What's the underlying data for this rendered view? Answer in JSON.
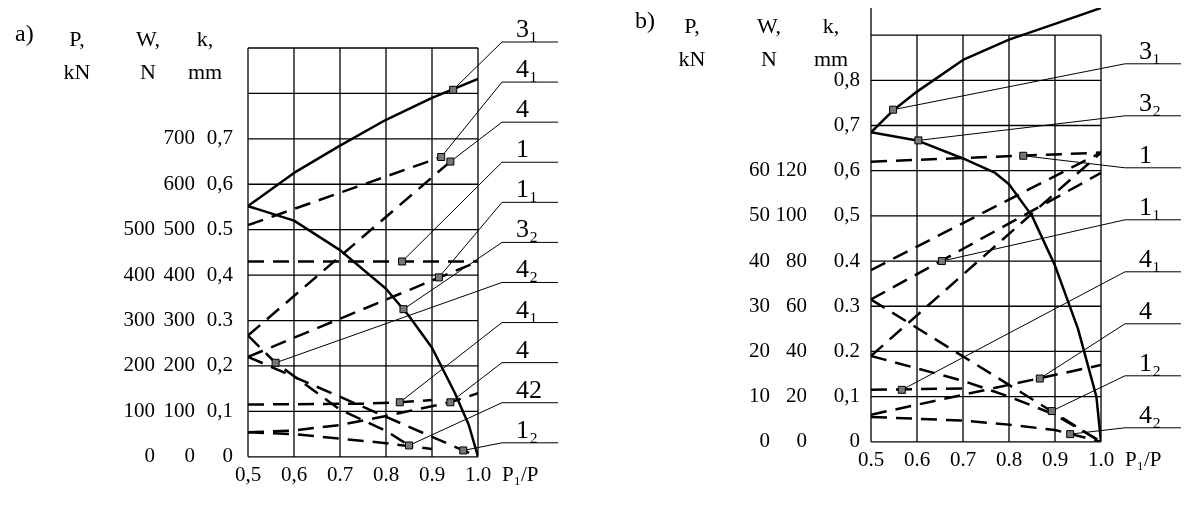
{
  "chart_data": [
    {
      "title": "a)",
      "type": "line",
      "xlabel": "P₁/P",
      "ylabel": "k,\nmm",
      "y2label": "W,\nN",
      "y3label": "P,\nkN",
      "xlim": [
        0.5,
        1.0
      ],
      "xticks": [
        {
          "value": 0.5,
          "label": "0,5"
        },
        {
          "value": 0.6,
          "label": "0,6"
        },
        0.7,
        0.8,
        0.9,
        {
          "value": 1,
          "label": "1.0"
        }
      ],
      "ylim": [
        0,
        0.9
      ],
      "yticks": [
        0,
        {
          "value": 0.1,
          "label": "0,1"
        },
        {
          "value": 0.2,
          "label": "0,2"
        },
        0.3,
        {
          "value": 0.4,
          "label": "0,4"
        },
        0.5,
        {
          "value": 0.6,
          "label": "0,6"
        },
        {
          "value": 0.7,
          "label": "0,7"
        },
        {
          "value": 0.8,
          "label": null
        },
        {
          "value": 0.9,
          "label": null
        }
      ],
      "y2lim": [
        0,
        900
      ],
      "y2ticks": [
        0,
        100,
        200,
        300,
        400,
        500,
        600,
        700
      ],
      "y3lim": [
        0,
        900
      ],
      "y3ticks": [
        0,
        100,
        200,
        300,
        400,
        500
      ],
      "grid": true,
      "series": [
        {
          "color": "#000000",
          "line_style": "solid",
          "x": [
            0.5,
            0.6,
            0.7,
            0.8,
            0.9,
            1.0
          ],
          "values": [
            0.552,
            0.625,
            0.685,
            0.742,
            0.79,
            0.832
          ]
        },
        {
          "color": "#000000",
          "line_style": "solid",
          "x": [
            0.5,
            0.6,
            0.7,
            0.8,
            0.85,
            0.9,
            0.95,
            0.98,
            1.0
          ],
          "values": [
            0.552,
            0.52,
            0.455,
            0.37,
            0.31,
            0.24,
            0.14,
            0.07,
            0
          ]
        },
        {
          "color": "#000000",
          "line_style": "dashed",
          "x": [
            0.5,
            1.0
          ],
          "values": [
            0.43,
            0.43
          ]
        },
        {
          "color": "#000000",
          "line_style": "dashed",
          "x": [
            0.5,
            1.0
          ],
          "values": [
            0.22,
            0.43
          ]
        },
        {
          "color": "#000000",
          "line_style": "dashed",
          "x": [
            0.5,
            1.0
          ],
          "values": [
            0.22,
            0
          ]
        },
        {
          "color": "#000000",
          "line_style": "dashed",
          "x": [
            0.5,
            0.92
          ],
          "values": [
            0.51,
            0.66
          ]
        },
        {
          "color": "#000000",
          "line_style": "dashed",
          "x": [
            0.5,
            0.94
          ],
          "values": [
            0.267,
            0.65
          ]
        },
        {
          "color": "#000000",
          "line_style": "dashed",
          "x": [
            0.5,
            0.75,
            0.83,
            0.9
          ],
          "values": [
            0.115,
            0.117,
            0.12,
            0.125
          ]
        },
        {
          "color": "#000000",
          "line_style": "dashed",
          "x": [
            0.5,
            0.6,
            0.7,
            0.8,
            0.94,
            1.0
          ],
          "values": [
            0.054,
            0.058,
            0.07,
            0.09,
            0.12,
            0.14
          ]
        },
        {
          "color": "#000000",
          "line_style": "dashed",
          "x": [
            0.5,
            0.6,
            0.7,
            0.8,
            0.9
          ],
          "values": [
            0.054,
            0.05,
            0.04,
            0.03,
            0.017
          ]
        },
        {
          "color": "#000000",
          "line_style": "dashed",
          "x": [
            0.5,
            0.56,
            0.7,
            0.8,
            0.85
          ],
          "values": [
            0.267,
            0.207,
            0.104,
            0.057,
            0.025
          ]
        }
      ],
      "annotations": [
        {
          "text": "3₁",
          "x": 0.946,
          "y": 0.808
        },
        {
          "text": "4₁",
          "x": 0.92,
          "y": 0.66
        },
        {
          "text": "4",
          "x": 0.94,
          "y": 0.65
        },
        {
          "text": "1",
          "x": 0.835,
          "y": 0.43
        },
        {
          "text": "1₁",
          "x": 0.915,
          "y": 0.395
        },
        {
          "text": "3₂",
          "x": 0.838,
          "y": 0.325
        },
        {
          "text": "4₂",
          "x": 0.56,
          "y": 0.207
        },
        {
          "text": "4₁",
          "x": 0.83,
          "y": 0.12
        },
        {
          "text": "4",
          "x": 0.94,
          "y": 0.12
        },
        {
          "text": "42",
          "x": 0.85,
          "y": 0.025
        },
        {
          "text": "1₂",
          "x": 0.968,
          "y": 0.014
        }
      ]
    },
    {
      "title": "b)",
      "type": "line",
      "xlabel": "P₁/P",
      "ylabel": "k,\nmm",
      "y2label": "W,\nN",
      "y3label": "P,\nkN",
      "xlim": [
        0.5,
        1.0
      ],
      "xticks": [
        0.5,
        0.6,
        0.7,
        0.8,
        0.9,
        {
          "value": 1,
          "label": "1.0"
        }
      ],
      "ylim": [
        0,
        0.96
      ],
      "yticks": [
        0,
        {
          "value": 0.1,
          "label": "0,1"
        },
        0.2,
        0.3,
        0.4,
        {
          "value": 0.5,
          "label": "0,5"
        },
        {
          "value": 0.6,
          "label": "0,6"
        },
        {
          "value": 0.7,
          "label": "0,7"
        },
        {
          "value": 0.8,
          "label": "0,8"
        },
        {
          "value": 0.9,
          "label": null
        }
      ],
      "y2lim": [
        0,
        192
      ],
      "y2ticks": [
        0,
        20,
        40,
        60,
        80,
        100,
        120
      ],
      "y3lim": [
        0,
        96
      ],
      "y3ticks": [
        0,
        10,
        20,
        30,
        40,
        50,
        60
      ],
      "grid": true,
      "series": [
        {
          "color": "#000000",
          "line_style": "solid",
          "x": [
            0.5,
            0.55,
            0.6,
            0.7,
            0.8,
            0.9,
            1.0
          ],
          "values": [
            0.685,
            0.735,
            0.775,
            0.845,
            0.89,
            0.925,
            0.96
          ]
        },
        {
          "color": "#000000",
          "line_style": "solid",
          "x": [
            0.5,
            0.6,
            0.7,
            0.77,
            0.8,
            0.85,
            0.9,
            0.95,
            0.99,
            1.0
          ],
          "values": [
            0.685,
            0.667,
            0.627,
            0.595,
            0.57,
            0.5,
            0.39,
            0.25,
            0.1,
            0
          ]
        },
        {
          "color": "#000000",
          "line_style": "dashed",
          "x": [
            0.5,
            1.0
          ],
          "values": [
            0.62,
            0.64
          ]
        },
        {
          "color": "#000000",
          "line_style": "dashed",
          "x": [
            0.5,
            1.0
          ],
          "values": [
            0.38,
            0.64
          ]
        },
        {
          "color": "#000000",
          "line_style": "dashed",
          "x": [
            0.5,
            1.0
          ],
          "values": [
            0.315,
            0.595
          ]
        },
        {
          "color": "#000000",
          "line_style": "dashed",
          "x": [
            0.5,
            1.0
          ],
          "values": [
            0.19,
            0.64
          ]
        },
        {
          "color": "#000000",
          "line_style": "dashed",
          "x": [
            0.5,
            1.0
          ],
          "values": [
            0.315,
            0
          ]
        },
        {
          "color": "#000000",
          "line_style": "dashed",
          "x": [
            0.5,
            0.7,
            0.8,
            0.9,
            1.0
          ],
          "values": [
            0.19,
            0.135,
            0.1,
            0.06,
            0
          ]
        },
        {
          "color": "#000000",
          "line_style": "dashed",
          "x": [
            0.5,
            0.7
          ],
          "values": [
            0.115,
            0.118
          ]
        },
        {
          "color": "#000000",
          "line_style": "dashed",
          "x": [
            0.5,
            1.0
          ],
          "values": [
            0.06,
            0.17
          ]
        },
        {
          "color": "#000000",
          "line_style": "dashed",
          "x": [
            0.5,
            0.7,
            0.8,
            0.9,
            1.0
          ],
          "values": [
            0.055,
            0.047,
            0.038,
            0.026,
            0
          ]
        }
      ],
      "annotations": [
        {
          "text": "3₁",
          "x": 0.548,
          "y": 0.735
        },
        {
          "text": "3₂",
          "x": 0.603,
          "y": 0.667
        },
        {
          "text": "1",
          "x": 0.831,
          "y": 0.633
        },
        {
          "text": "1₁",
          "x": 0.654,
          "y": 0.4
        },
        {
          "text": "4₁",
          "x": 0.567,
          "y": 0.115
        },
        {
          "text": "4",
          "x": 0.867,
          "y": 0.14
        },
        {
          "text": "1₂",
          "x": 0.893,
          "y": 0.068
        },
        {
          "text": "4₂",
          "x": 0.933,
          "y": 0.017
        }
      ]
    }
  ]
}
